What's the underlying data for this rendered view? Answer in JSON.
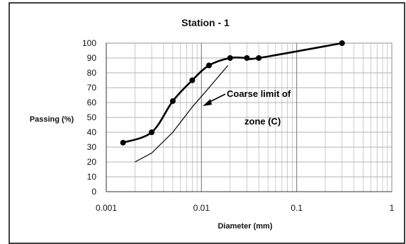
{
  "chart_data": {
    "type": "line",
    "title": "Station - 1",
    "xlabel": "Diameter (mm)",
    "ylabel": "Passing  (%)",
    "x_scale": "log",
    "xlim": [
      0.001,
      1
    ],
    "ylim": [
      0,
      100
    ],
    "x_ticks": [
      0.001,
      0.01,
      0.1,
      1
    ],
    "x_tick_labels": [
      "0.001",
      "0.01",
      "0.1",
      "1"
    ],
    "y_ticks": [
      0,
      10,
      20,
      30,
      40,
      50,
      60,
      70,
      80,
      90,
      100
    ],
    "grid": true,
    "series": [
      {
        "role": "sample",
        "color": "#000000",
        "markers": true,
        "x": [
          0.0015,
          0.003,
          0.005,
          0.008,
          0.012,
          0.02,
          0.03,
          0.04,
          0.3
        ],
        "y": [
          33,
          40,
          61,
          75,
          85,
          90,
          90,
          90,
          100
        ]
      },
      {
        "role": "coarse-limit",
        "color": "#000000",
        "markers": false,
        "x": [
          0.002,
          0.003,
          0.005,
          0.008,
          0.012,
          0.019
        ],
        "y": [
          20,
          26,
          40,
          57,
          70,
          85
        ]
      }
    ],
    "annotations": [
      {
        "line1": "Coarse limit of",
        "line2": "zone (C)"
      }
    ]
  }
}
